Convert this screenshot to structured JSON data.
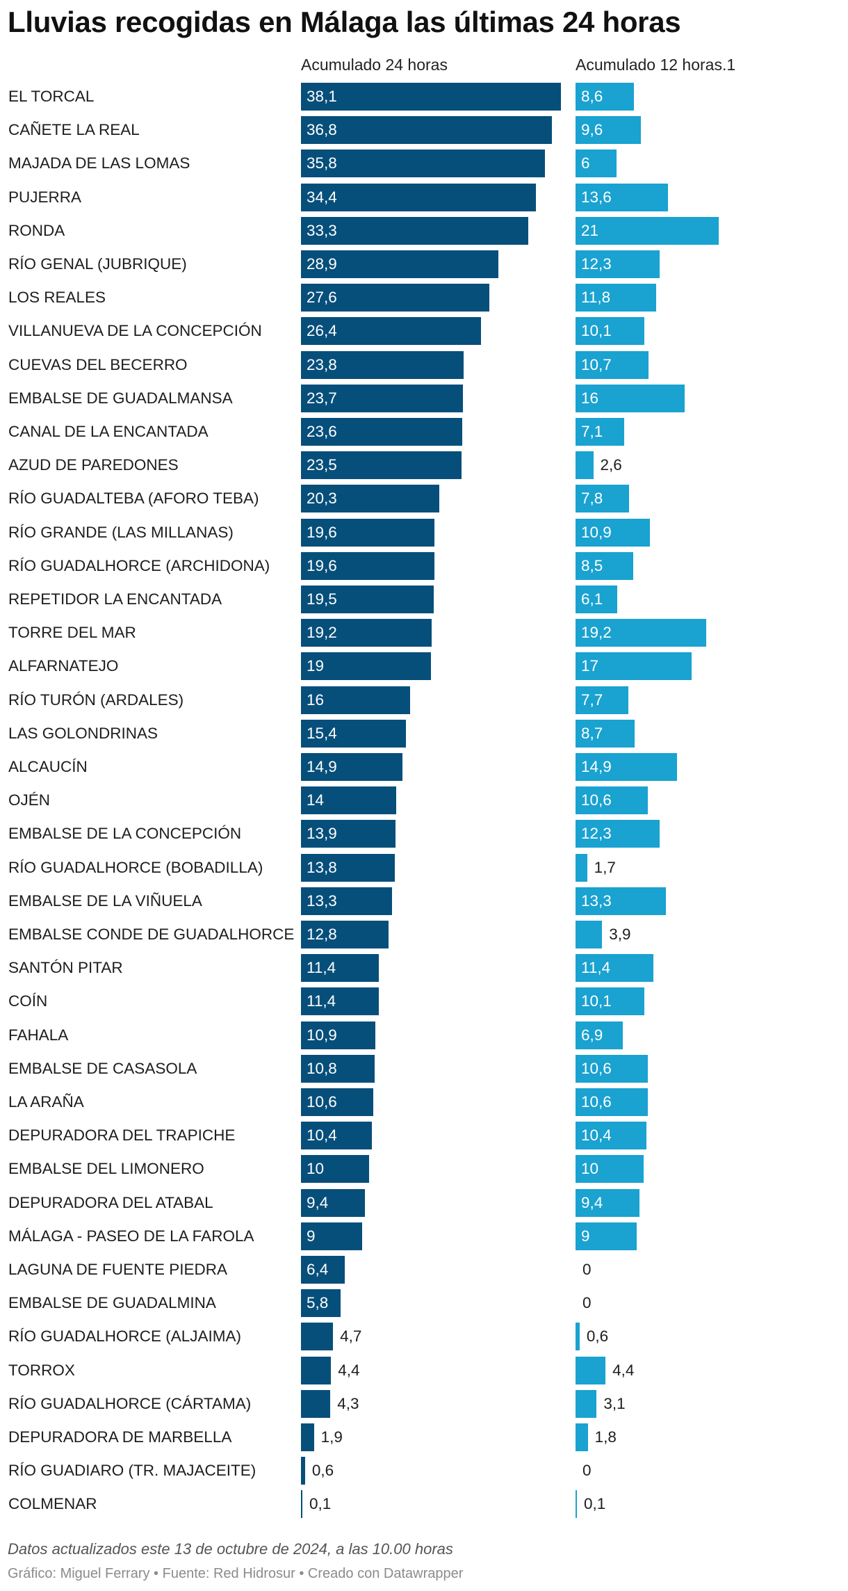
{
  "title": "Lluvias recogidas en Málaga las últimas 24 horas",
  "note": "Datos actualizados este 13 de octubre de 2024, a las 10.00 horas",
  "credits": "Gráfico: Miguel Ferrary • Fuente: Red Hidrosur • Creado con Datawrapper",
  "colors": {
    "series_24h": "#074f7b",
    "series_12h": "#1aa2d0"
  },
  "chart_data": {
    "type": "bar",
    "orientation": "horizontal",
    "title": "Lluvias recogidas en Málaga las últimas 24 horas",
    "categories": [
      "EL TORCAL",
      "CAÑETE LA REAL",
      "MAJADA DE LAS LOMAS",
      "PUJERRA",
      "RONDA",
      "RÍO GENAL (JUBRIQUE)",
      "LOS REALES",
      "VILLANUEVA DE LA CONCEPCIÓN",
      "CUEVAS DEL BECERRO",
      "EMBALSE DE GUADALMANSA",
      "CANAL DE LA ENCANTADA",
      "AZUD DE PAREDONES",
      "RÍO GUADALTEBA (AFORO TEBA)",
      "RÍO GRANDE (LAS MILLANAS)",
      "RÍO GUADALHORCE (ARCHIDONA)",
      "REPETIDOR LA ENCANTADA",
      "TORRE DEL MAR",
      "ALFARNATEJO",
      "RÍO TURÓN (ARDALES)",
      "LAS GOLONDRINAS",
      "ALCAUCÍN",
      "OJÉN",
      "EMBALSE DE LA CONCEPCIÓN",
      "RÍO GUADALHORCE (BOBADILLA)",
      "EMBALSE DE LA VIÑUELA",
      "EMBALSE CONDE DE GUADALHORCE",
      "SANTÓN PITAR",
      "COÍN",
      "FAHALA",
      "EMBALSE DE CASASOLA",
      "LA ARAÑA",
      "DEPURADORA DEL TRAPICHE",
      "EMBALSE DEL LIMONERO",
      "DEPURADORA DEL ATABAL",
      "MÁLAGA - PASEO DE LA FAROLA",
      "LAGUNA DE FUENTE PIEDRA",
      "EMBALSE DE GUADALMINA",
      "RÍO GUADALHORCE (ALJAIMA)",
      "TORROX",
      "RÍO GUADALHORCE (CÁRTAMA)",
      "DEPURADORA DE MARBELLA",
      "RÍO GUADIARO (TR. MAJACEITE)",
      "COLMENAR"
    ],
    "series": [
      {
        "name": "Acumulado 24 horas",
        "values": [
          38.1,
          36.8,
          35.8,
          34.4,
          33.3,
          28.9,
          27.6,
          26.4,
          23.8,
          23.7,
          23.6,
          23.5,
          20.3,
          19.6,
          19.6,
          19.5,
          19.2,
          19,
          16,
          15.4,
          14.9,
          14,
          13.9,
          13.8,
          13.3,
          12.8,
          11.4,
          11.4,
          10.9,
          10.8,
          10.6,
          10.4,
          10,
          9.4,
          9,
          6.4,
          5.8,
          4.7,
          4.4,
          4.3,
          1.9,
          0.6,
          0.1
        ],
        "labels": [
          "38,1",
          "36,8",
          "35,8",
          "34,4",
          "33,3",
          "28,9",
          "27,6",
          "26,4",
          "23,8",
          "23,7",
          "23,6",
          "23,5",
          "20,3",
          "19,6",
          "19,6",
          "19,5",
          "19,2",
          "19",
          "16",
          "15,4",
          "14,9",
          "14",
          "13,9",
          "13,8",
          "13,3",
          "12,8",
          "11,4",
          "11,4",
          "10,9",
          "10,8",
          "10,6",
          "10,4",
          "10",
          "9,4",
          "9",
          "6,4",
          "5,8",
          "4,7",
          "4,4",
          "4,3",
          "1,9",
          "0,6",
          "0,1"
        ]
      },
      {
        "name": "Acumulado 12 horas.1",
        "values": [
          8.6,
          9.6,
          6,
          13.6,
          21,
          12.3,
          11.8,
          10.1,
          10.7,
          16,
          7.1,
          2.6,
          7.8,
          10.9,
          8.5,
          6.1,
          19.2,
          17,
          7.7,
          8.7,
          14.9,
          10.6,
          12.3,
          1.7,
          13.3,
          3.9,
          11.4,
          10.1,
          6.9,
          10.6,
          10.6,
          10.4,
          10,
          9.4,
          9,
          0,
          0,
          0.6,
          4.4,
          3.1,
          1.8,
          0,
          0.1
        ],
        "labels": [
          "8,6",
          "9,6",
          "6",
          "13,6",
          "21",
          "12,3",
          "11,8",
          "10,1",
          "10,7",
          "16",
          "7,1",
          "2,6",
          "7,8",
          "10,9",
          "8,5",
          "6,1",
          "19,2",
          "17",
          "7,7",
          "8,7",
          "14,9",
          "10,6",
          "12,3",
          "1,7",
          "13,3",
          "3,9",
          "11,4",
          "10,1",
          "6,9",
          "10,6",
          "10,6",
          "10,4",
          "10",
          "9,4",
          "9",
          "0",
          "0",
          "0,6",
          "4,4",
          "3,1",
          "1,8",
          "0",
          "0,1"
        ]
      }
    ],
    "grid": false,
    "legend": "none"
  }
}
